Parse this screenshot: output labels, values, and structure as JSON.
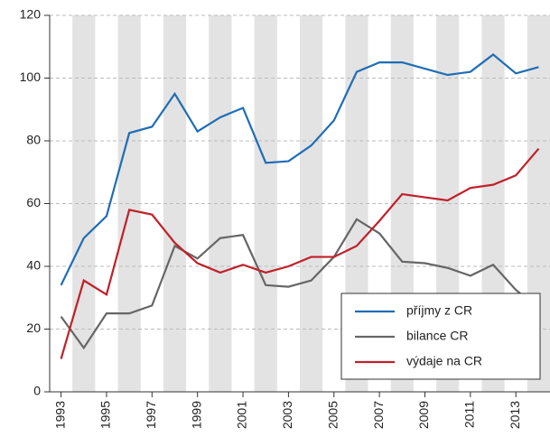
{
  "chart_data": {
    "type": "line",
    "x": [
      1993,
      1994,
      1995,
      1996,
      1997,
      1998,
      1999,
      2000,
      2001,
      2002,
      2003,
      2004,
      2005,
      2006,
      2007,
      2008,
      2009,
      2010,
      2011,
      2012,
      2013,
      2014
    ],
    "series": [
      {
        "name": "příjmy z CR",
        "color": "#1f6db5",
        "values": [
          34,
          49,
          56,
          82.5,
          84.5,
          95,
          83,
          87.5,
          90.5,
          73,
          73.5,
          78.5,
          86.5,
          102,
          105,
          105,
          103,
          101,
          102,
          107.5,
          101.5,
          103.5
        ]
      },
      {
        "name": "bilance CR",
        "color": "#666666",
        "values": [
          24,
          14,
          25,
          25,
          27.5,
          46.5,
          42.5,
          49,
          50,
          34,
          33.5,
          35.5,
          43,
          55,
          50.5,
          41.5,
          41,
          39.5,
          37,
          40.5,
          32.5,
          26.5
        ]
      },
      {
        "name": "výdaje na CR",
        "color": "#c0202a",
        "values": [
          10.5,
          35.5,
          31,
          58,
          56.5,
          47.5,
          41,
          38,
          40.5,
          38,
          40,
          43,
          43,
          46.5,
          54.5,
          63,
          62,
          61,
          65,
          66,
          69,
          77.5
        ]
      }
    ],
    "xlim": [
      1992.5,
      2014.5
    ],
    "xticks": [
      1993,
      1995,
      1997,
      1999,
      2001,
      2003,
      2005,
      2007,
      2009,
      2011,
      2013
    ],
    "ylim": [
      0,
      120
    ],
    "yticks": [
      0,
      20,
      40,
      60,
      80,
      100,
      120
    ],
    "grid": true,
    "legend": "lower right"
  }
}
